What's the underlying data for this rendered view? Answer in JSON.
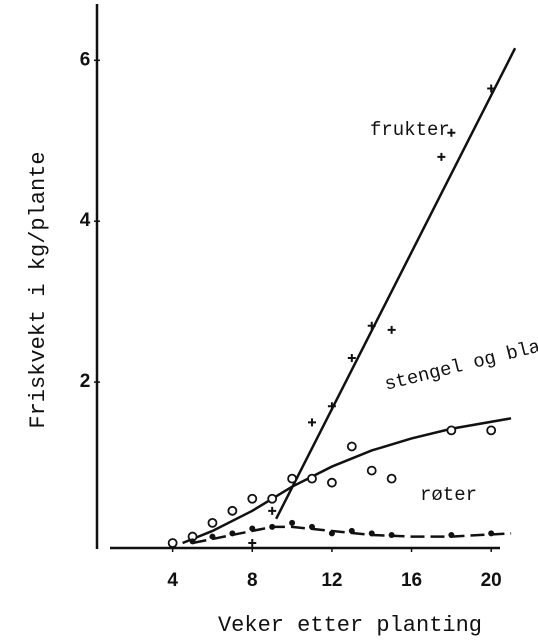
{
  "chart_data": {
    "type": "scatter",
    "x_label": "Veker etter planting",
    "y_label": "Friskvekt i kg/plante",
    "xlim": [
      0,
      22
    ],
    "ylim": [
      0,
      6.7
    ],
    "xticks": [
      4,
      8,
      12,
      16,
      20
    ],
    "yticks": [
      2,
      4,
      6
    ],
    "color": "#111111",
    "series": [
      {
        "name": "frukter",
        "marker": "plus",
        "line": "solid",
        "x": [
          8,
          9,
          11,
          12,
          13,
          14,
          15,
          17.5,
          18,
          20
        ],
        "values": [
          0,
          0.4,
          1.5,
          1.7,
          2.3,
          2.7,
          2.65,
          4.8,
          5.1,
          5.65
        ],
        "fit": {
          "x": [
            9.2,
            21.2
          ],
          "values": [
            0.3,
            6.15
          ]
        }
      },
      {
        "name": "stengel og blad",
        "marker": "circle",
        "line": "solid",
        "x": [
          4,
          5,
          6,
          7,
          8,
          9,
          10,
          11,
          12,
          13,
          14,
          15,
          18,
          20
        ],
        "values": [
          0,
          0.08,
          0.25,
          0.4,
          0.55,
          0.55,
          0.8,
          0.8,
          0.75,
          1.2,
          0.9,
          0.8,
          1.4,
          1.4
        ],
        "fit": {
          "x": [
            4.5,
            6,
            8,
            10,
            12,
            14,
            16,
            18,
            21
          ],
          "values": [
            0,
            0.15,
            0.4,
            0.7,
            0.95,
            1.15,
            1.3,
            1.42,
            1.55
          ]
        }
      },
      {
        "name": "røter",
        "marker": "dot",
        "line": "dashed",
        "x": [
          5,
          6,
          7,
          8,
          9,
          10,
          11,
          12,
          13,
          14,
          15,
          18,
          20
        ],
        "values": [
          0.02,
          0.08,
          0.12,
          0.18,
          0.2,
          0.25,
          0.2,
          0.12,
          0.15,
          0.12,
          0.1,
          0.1,
          0.12
        ],
        "fit": {
          "x": [
            5,
            7,
            9,
            10,
            12,
            14,
            16,
            18,
            21
          ],
          "values": [
            0,
            0.1,
            0.2,
            0.2,
            0.15,
            0.1,
            0.08,
            0.08,
            0.12
          ]
        }
      }
    ]
  }
}
